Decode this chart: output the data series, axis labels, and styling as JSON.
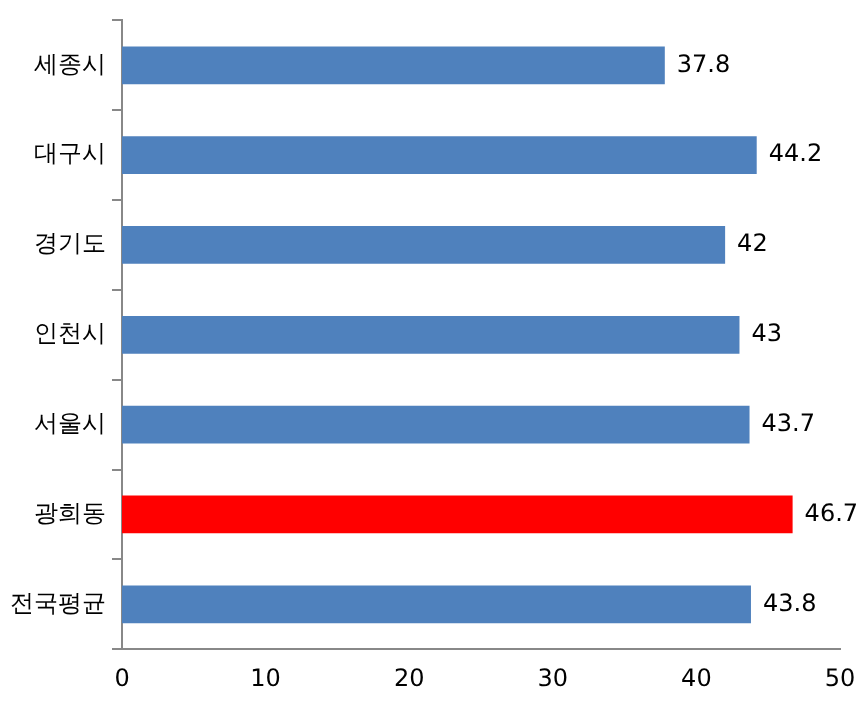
{
  "chart_data": {
    "type": "bar",
    "orientation": "horizontal",
    "categories": [
      "세종시",
      "대구시",
      "경기도",
      "인천시",
      "서울시",
      "광희동",
      "전국평균"
    ],
    "values": [
      37.8,
      44.2,
      42,
      43,
      43.7,
      46.7,
      43.8
    ],
    "colors": [
      "#4f81bd",
      "#4f81bd",
      "#4f81bd",
      "#4f81bd",
      "#4f81bd",
      "#ff0000",
      "#4f81bd"
    ],
    "xlim": [
      0,
      50
    ],
    "xticks": [
      0,
      10,
      20,
      30,
      40,
      50
    ],
    "data_labels": true
  }
}
